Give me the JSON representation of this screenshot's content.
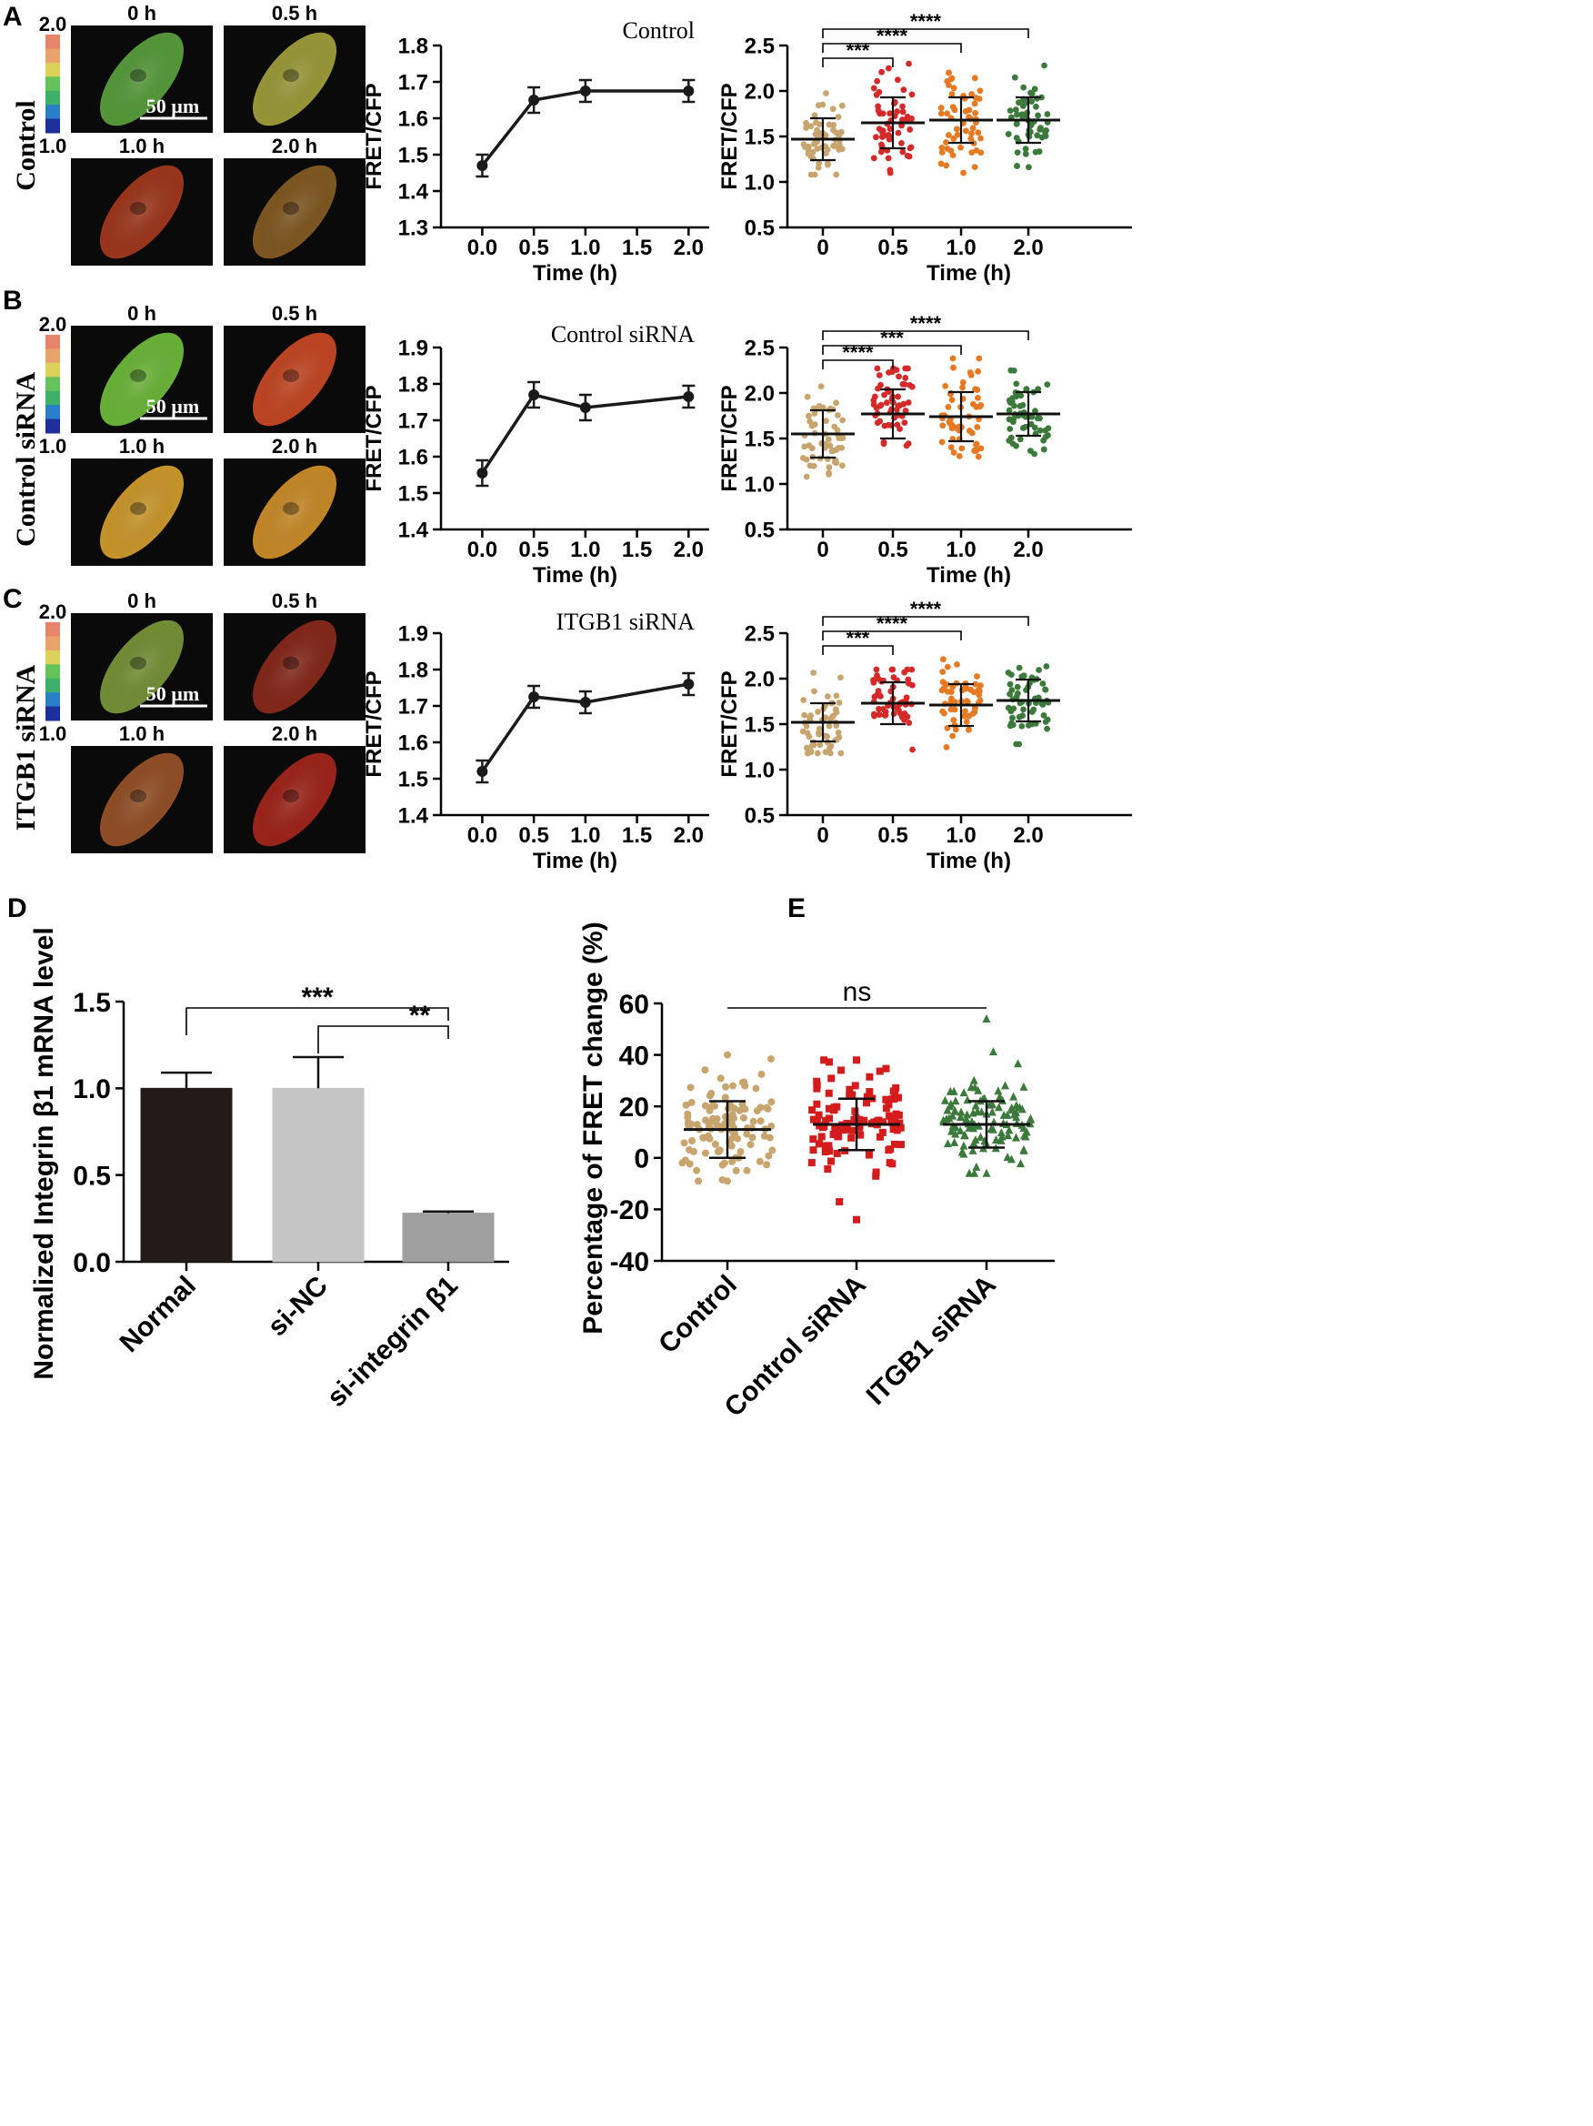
{
  "colorbar": {
    "max_label": "2.0",
    "min_label": "1.0",
    "colors": [
      "#e8846a",
      "#e9a36a",
      "#dcd25a",
      "#64c35a",
      "#3fb06b",
      "#2a7fc9",
      "#1e2f9c"
    ]
  },
  "micrograph": {
    "scale_label": "50 µm",
    "time_labels": [
      "0 h",
      "0.5 h",
      "1.0 h",
      "2.0 h"
    ]
  },
  "rows": [
    {
      "panel": "A",
      "row_label": "Control",
      "line_title": "Control",
      "cell_colors": [
        "#5ca53e",
        "#a5a43c",
        "#a93a1e",
        "#8a5e22"
      ]
    },
    {
      "panel": "B",
      "row_label": "Control siRNA",
      "line_title": "Control siRNA",
      "cell_colors": [
        "#72c23c",
        "#d04a26",
        "#d9a22e",
        "#d6932a"
      ]
    },
    {
      "panel": "C",
      "row_label": "ITGB1 siRNA",
      "line_title": "ITGB1 siRNA",
      "cell_colors": [
        "#7c9a3a",
        "#8e2a1c",
        "#9c5428",
        "#a8261c"
      ]
    }
  ],
  "panel_d_letter": "D",
  "panel_e_letter": "E",
  "chart_data": [
    {
      "id": "A-line",
      "type": "line",
      "title": "Control",
      "xlabel": "Time (h)",
      "ylabel": "FRET/CFP",
      "xlim": [
        -0.4,
        2.2
      ],
      "ylim": [
        1.3,
        1.8
      ],
      "xticks": [
        0.0,
        0.5,
        1.0,
        1.5,
        2.0
      ],
      "xtick_labels": [
        "0.0",
        "0.5",
        "1.0",
        "1.5",
        "2.0"
      ],
      "yticks": [
        1.3,
        1.4,
        1.5,
        1.6,
        1.7,
        1.8
      ],
      "ytick_labels": [
        "1.3",
        "1.4",
        "1.5",
        "1.6",
        "1.7",
        "1.8"
      ],
      "x": [
        0.0,
        0.5,
        1.0,
        2.0
      ],
      "y": [
        1.47,
        1.65,
        1.675,
        1.675
      ],
      "err": [
        0.03,
        0.035,
        0.03,
        0.03
      ]
    },
    {
      "id": "B-line",
      "type": "line",
      "title": "Control siRNA",
      "xlabel": "Time (h)",
      "ylabel": "FRET/CFP",
      "xlim": [
        -0.4,
        2.2
      ],
      "ylim": [
        1.4,
        1.9
      ],
      "xticks": [
        0.0,
        0.5,
        1.0,
        1.5,
        2.0
      ],
      "xtick_labels": [
        "0.0",
        "0.5",
        "1.0",
        "1.5",
        "2.0"
      ],
      "yticks": [
        1.4,
        1.5,
        1.6,
        1.7,
        1.8,
        1.9
      ],
      "ytick_labels": [
        "1.4",
        "1.5",
        "1.6",
        "1.7",
        "1.8",
        "1.9"
      ],
      "x": [
        0.0,
        0.5,
        1.0,
        2.0
      ],
      "y": [
        1.555,
        1.77,
        1.735,
        1.765
      ],
      "err": [
        0.035,
        0.035,
        0.035,
        0.03
      ]
    },
    {
      "id": "C-line",
      "type": "line",
      "title": "ITGB1 siRNA",
      "xlabel": "Time (h)",
      "ylabel": "FRET/CFP",
      "xlim": [
        -0.4,
        2.2
      ],
      "ylim": [
        1.4,
        1.9
      ],
      "xticks": [
        0.0,
        0.5,
        1.0,
        1.5,
        2.0
      ],
      "xtick_labels": [
        "0.0",
        "0.5",
        "1.0",
        "1.5",
        "2.0"
      ],
      "yticks": [
        1.4,
        1.5,
        1.6,
        1.7,
        1.8,
        1.9
      ],
      "ytick_labels": [
        "1.4",
        "1.5",
        "1.6",
        "1.7",
        "1.8",
        "1.9"
      ],
      "x": [
        0.0,
        0.5,
        1.0,
        2.0
      ],
      "y": [
        1.52,
        1.725,
        1.71,
        1.76
      ],
      "err": [
        0.03,
        0.03,
        0.03,
        0.03
      ]
    },
    {
      "id": "A-scatter",
      "type": "scatter",
      "xlabel": "Time (h)",
      "ylabel": "FRET/CFP",
      "ylim": [
        0.5,
        2.5
      ],
      "yticks": [
        0.5,
        1.0,
        1.5,
        2.0,
        2.5
      ],
      "ytick_labels": [
        "0.5",
        "1.0",
        "1.5",
        "2.0",
        "2.5"
      ],
      "categories": [
        "0",
        "0.5",
        "1.0",
        "2.0"
      ],
      "colors": [
        "#c8a56e",
        "#d42a2a",
        "#e57a22",
        "#3c7a3c"
      ],
      "means": [
        1.47,
        1.65,
        1.68,
        1.68
      ],
      "sds": [
        0.23,
        0.28,
        0.25,
        0.25
      ],
      "mins": [
        1.08,
        1.1,
        1.1,
        1.15
      ],
      "maxs": [
        2.05,
        2.3,
        2.2,
        2.28
      ],
      "n": 55,
      "brackets": [
        {
          "from": 0,
          "to": 1,
          "label": "***",
          "level": 0
        },
        {
          "from": 0,
          "to": 2,
          "label": "****",
          "level": 1
        },
        {
          "from": 0,
          "to": 3,
          "label": "****",
          "level": 2
        }
      ]
    },
    {
      "id": "B-scatter",
      "type": "scatter",
      "xlabel": "Time (h)",
      "ylabel": "FRET/CFP",
      "ylim": [
        0.5,
        2.5
      ],
      "yticks": [
        0.5,
        1.0,
        1.5,
        2.0,
        2.5
      ],
      "ytick_labels": [
        "0.5",
        "1.0",
        "1.5",
        "2.0",
        "2.5"
      ],
      "categories": [
        "0",
        "0.5",
        "1.0",
        "2.0"
      ],
      "colors": [
        "#c8a56e",
        "#d42a2a",
        "#e57a22",
        "#3c7a3c"
      ],
      "means": [
        1.55,
        1.77,
        1.74,
        1.77
      ],
      "sds": [
        0.26,
        0.27,
        0.27,
        0.24
      ],
      "mins": [
        1.08,
        1.28,
        1.3,
        1.33
      ],
      "maxs": [
        2.25,
        2.27,
        2.38,
        2.25
      ],
      "n": 55,
      "brackets": [
        {
          "from": 0,
          "to": 1,
          "label": "****",
          "level": 0
        },
        {
          "from": 0,
          "to": 2,
          "label": "***",
          "level": 1
        },
        {
          "from": 0,
          "to": 3,
          "label": "****",
          "level": 2
        }
      ]
    },
    {
      "id": "C-scatter",
      "type": "scatter",
      "xlabel": "Time (h)",
      "ylabel": "FRET/CFP",
      "ylim": [
        0.5,
        2.5
      ],
      "yticks": [
        0.5,
        1.0,
        1.5,
        2.0,
        2.5
      ],
      "ytick_labels": [
        "0.5",
        "1.0",
        "1.5",
        "2.0",
        "2.5"
      ],
      "categories": [
        "0",
        "0.5",
        "1.0",
        "2.0"
      ],
      "colors": [
        "#c8a56e",
        "#d42a2a",
        "#e57a22",
        "#3c7a3c"
      ],
      "means": [
        1.52,
        1.73,
        1.71,
        1.76
      ],
      "sds": [
        0.21,
        0.23,
        0.23,
        0.23
      ],
      "mins": [
        1.18,
        1.22,
        1.2,
        1.28
      ],
      "maxs": [
        2.08,
        2.1,
        2.32,
        2.3
      ],
      "n": 55,
      "brackets": [
        {
          "from": 0,
          "to": 1,
          "label": "***",
          "level": 0
        },
        {
          "from": 0,
          "to": 2,
          "label": "****",
          "level": 1
        },
        {
          "from": 0,
          "to": 3,
          "label": "****",
          "level": 2
        }
      ]
    },
    {
      "id": "D-bar",
      "type": "bar",
      "ylabel": "Normalized Integrin β1 mRNA level",
      "ylim": [
        0,
        1.5
      ],
      "yticks": [
        0.0,
        0.5,
        1.0,
        1.5
      ],
      "ytick_labels": [
        "0.0",
        "0.5",
        "1.0",
        "1.5"
      ],
      "categories": [
        "Normal",
        "si-NC",
        "si-integrin β1"
      ],
      "values": [
        1.0,
        1.0,
        0.28
      ],
      "errors": [
        0.09,
        0.18,
        0.01
      ],
      "colors": [
        "#231b1a",
        "#c5c5c5",
        "#9f9f9f"
      ],
      "brackets": [
        {
          "from": 0,
          "to": 2,
          "label": "***",
          "level": 1
        },
        {
          "from": 1,
          "to": 2,
          "label": "**",
          "level": 0
        }
      ]
    },
    {
      "id": "E-scatter",
      "type": "scatter",
      "ylabel": "Percentage of FRET change   (%)",
      "ylim": [
        -40,
        60
      ],
      "yticks": [
        -40,
        -20,
        0,
        20,
        40,
        60
      ],
      "ytick_labels": [
        "-40",
        "-20",
        "0",
        "20",
        "40",
        "60"
      ],
      "categories": [
        "Control",
        "Control siRNA",
        "ITGB1 siRNA"
      ],
      "colors": [
        "#c8a56e",
        "#d41c1c",
        "#3c7a3c"
      ],
      "markers": [
        "circle",
        "square",
        "triangle"
      ],
      "means": [
        11,
        13,
        13
      ],
      "sds": [
        11,
        10,
        9
      ],
      "mins": [
        -9,
        -24,
        -6
      ],
      "maxs": [
        40,
        38,
        54
      ],
      "n": 110,
      "bracket": {
        "from": 0,
        "to": 2,
        "label": "ns"
      }
    }
  ]
}
